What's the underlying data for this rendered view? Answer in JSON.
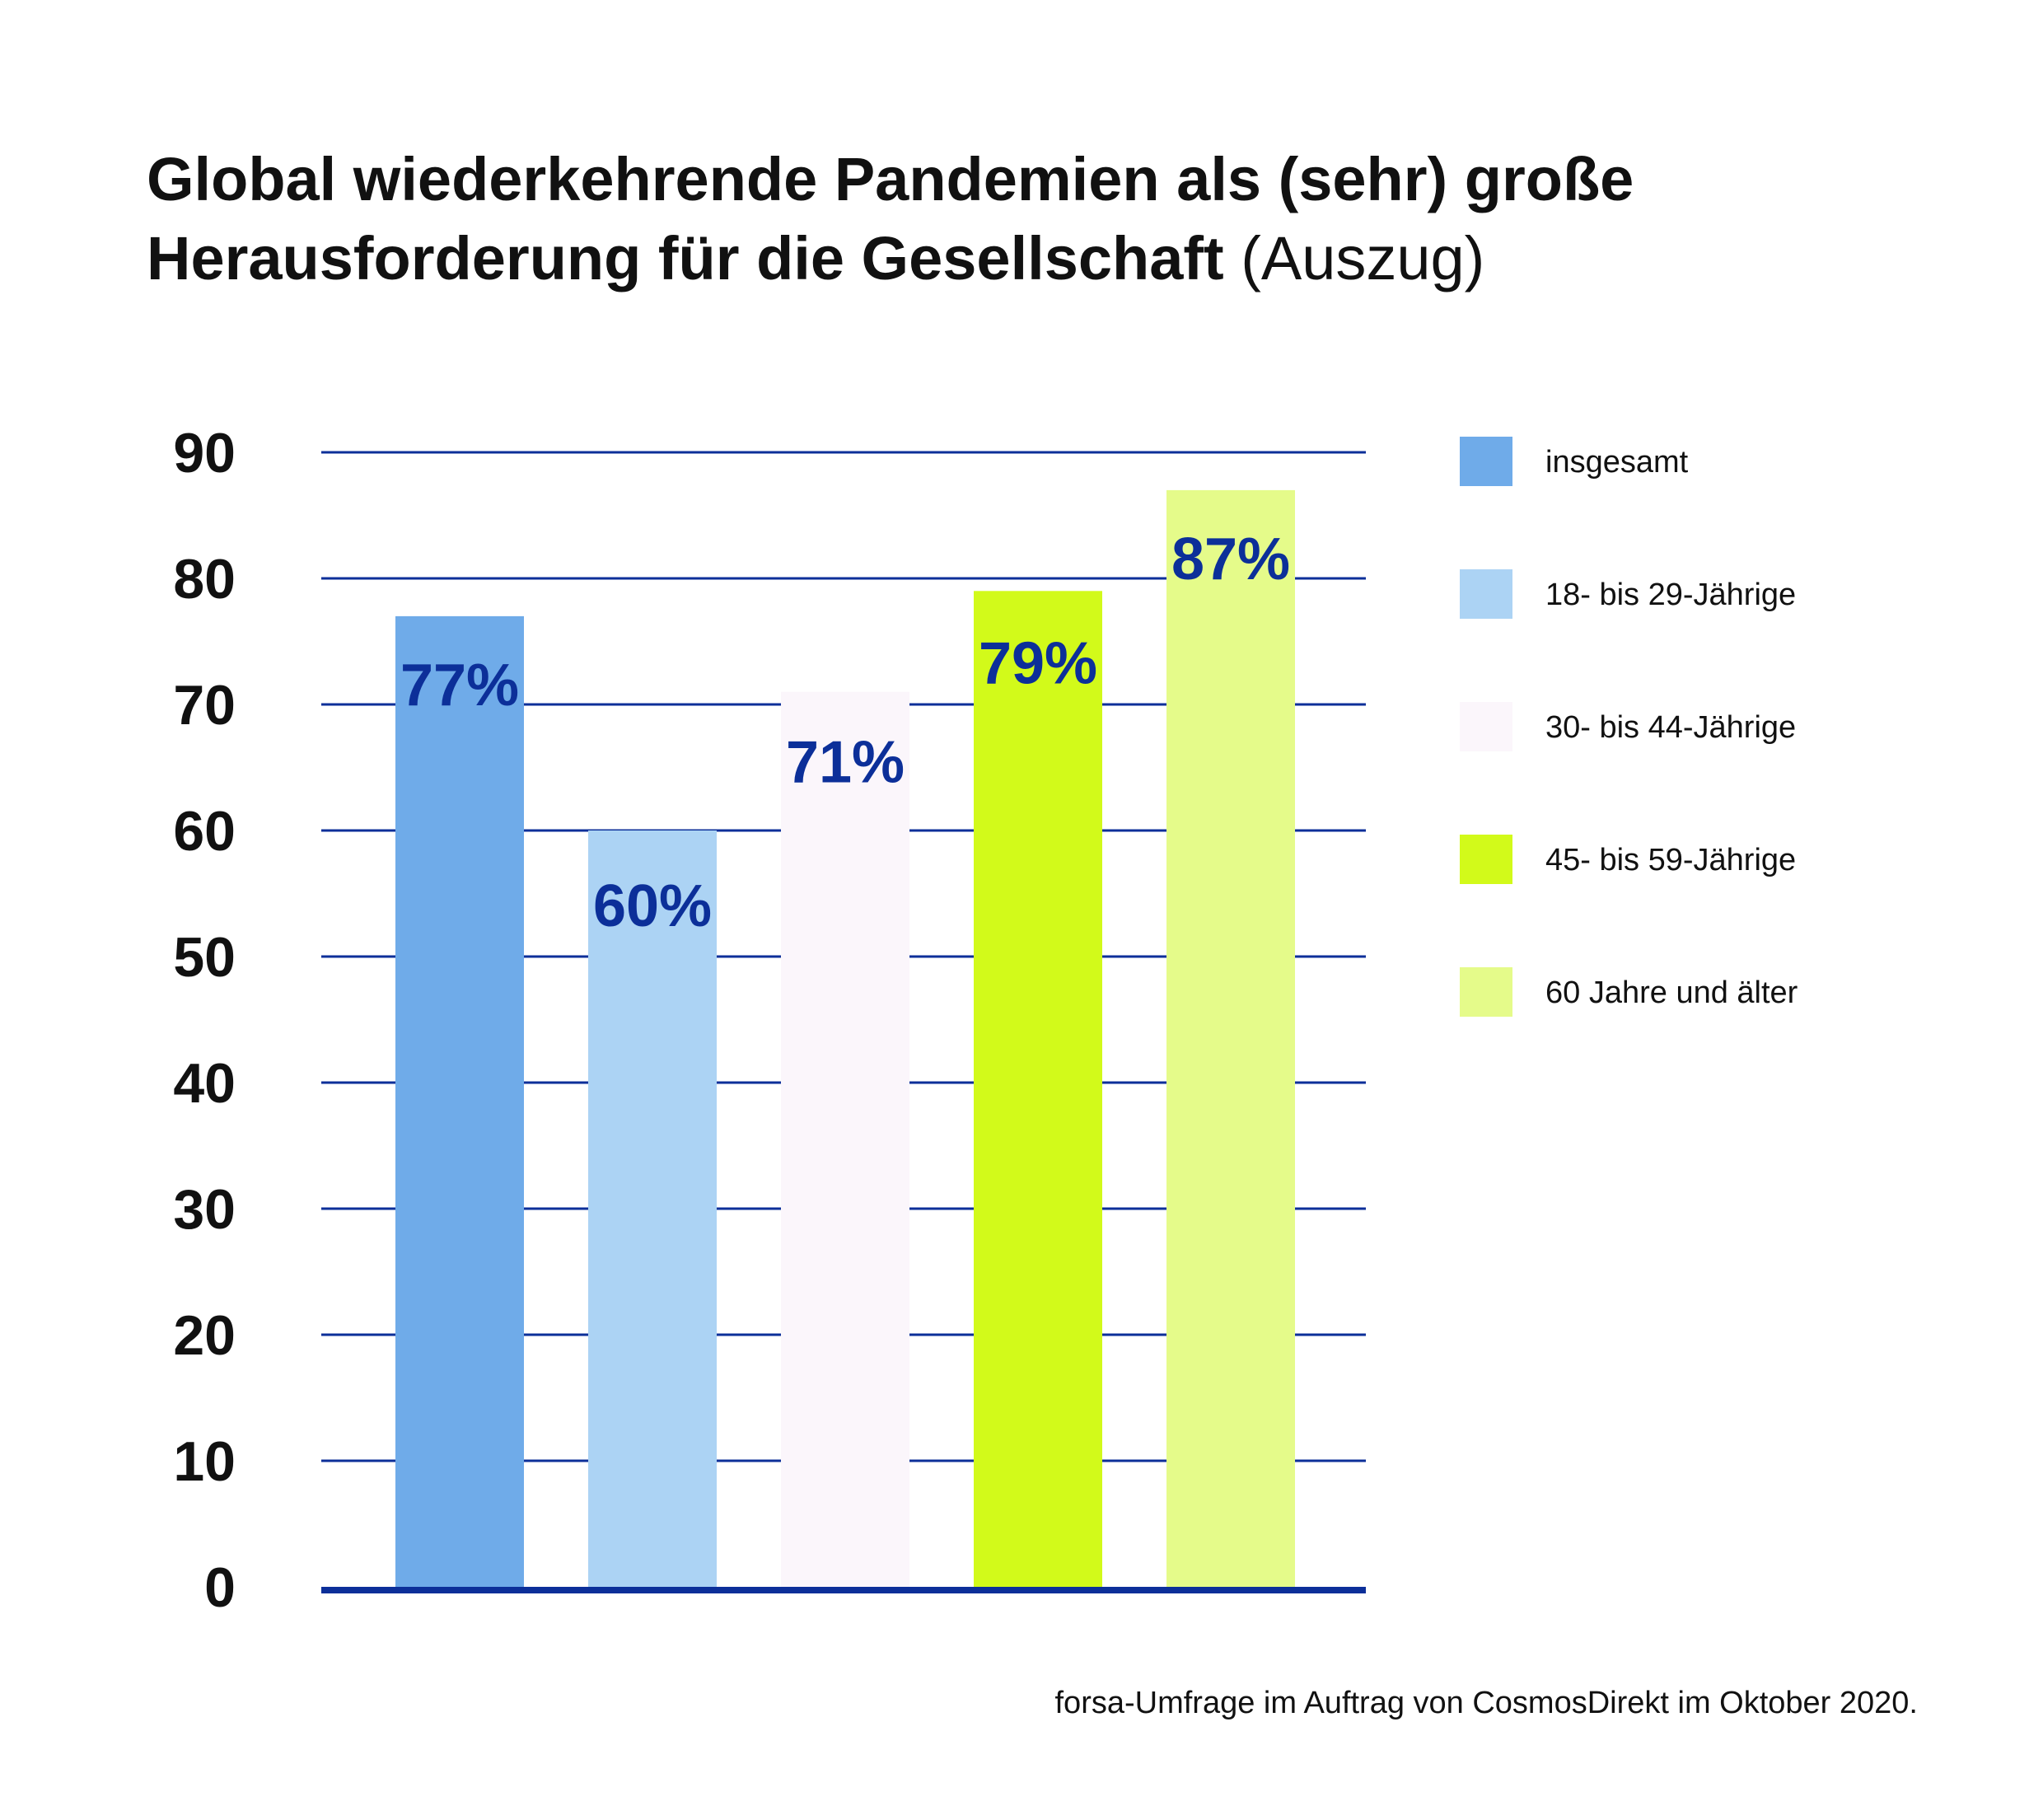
{
  "title": {
    "line1": "Global wiederkehrende Pandemien als (sehr) große",
    "line2_bold": "Herausforderung für die Gesellschaft",
    "line2_suffix": "(Auszug)"
  },
  "source": "forsa-Umfrage im Auftrag von CosmosDirekt im Oktober 2020.",
  "colors": {
    "grid": "#0c2f99",
    "label": "#0c2f99"
  },
  "chart_data": {
    "type": "bar",
    "title": "Global wiederkehrende Pandemien als (sehr) große Herausforderung für die Gesellschaft (Auszug)",
    "xlabel": "",
    "ylabel": "",
    "ylim": [
      0,
      90
    ],
    "yticks": [
      0,
      10,
      20,
      30,
      40,
      50,
      60,
      70,
      80,
      90
    ],
    "grid": true,
    "legend_position": "right",
    "categories": [
      "insgesamt",
      "18- bis 29-Jährige",
      "30- bis 44-Jährige",
      "45- bis 59-Jährige",
      "60 Jahre und älter"
    ],
    "values": [
      77,
      60,
      71,
      79,
      87
    ],
    "labels": [
      "77%",
      "60%",
      "71%",
      "79%",
      "87%"
    ],
    "bar_colors": [
      "#6fabe9",
      "#acd3f4",
      "#fbf6fb",
      "#d2fa1a",
      "#e5fb8a"
    ]
  }
}
